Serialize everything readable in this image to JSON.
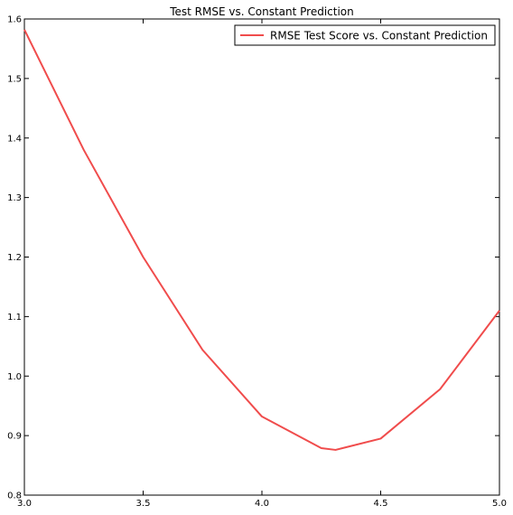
{
  "chart_data": {
    "type": "line",
    "title": "Test RMSE vs. Constant Prediction",
    "xlabel": "",
    "ylabel": "",
    "xlim": [
      3.0,
      5.0
    ],
    "ylim": [
      0.8,
      1.6
    ],
    "xticks": [
      "3.0",
      "3.5",
      "4.0",
      "4.5",
      "5.0"
    ],
    "yticks": [
      "0.8",
      "0.9",
      "1.0",
      "1.1",
      "1.2",
      "1.3",
      "1.4",
      "1.5",
      "1.6"
    ],
    "grid": false,
    "legend_position": "top-right",
    "series": [
      {
        "name": "RMSE Test Score vs. Constant Prediction",
        "color": "#f04c4c",
        "x": [
          3.0,
          3.25,
          3.5,
          3.75,
          4.0,
          4.25,
          4.31,
          4.5,
          4.75,
          5.0
        ],
        "y": [
          1.582,
          1.38,
          1.2,
          1.044,
          0.932,
          0.879,
          0.876,
          0.895,
          0.978,
          1.11
        ]
      }
    ]
  }
}
